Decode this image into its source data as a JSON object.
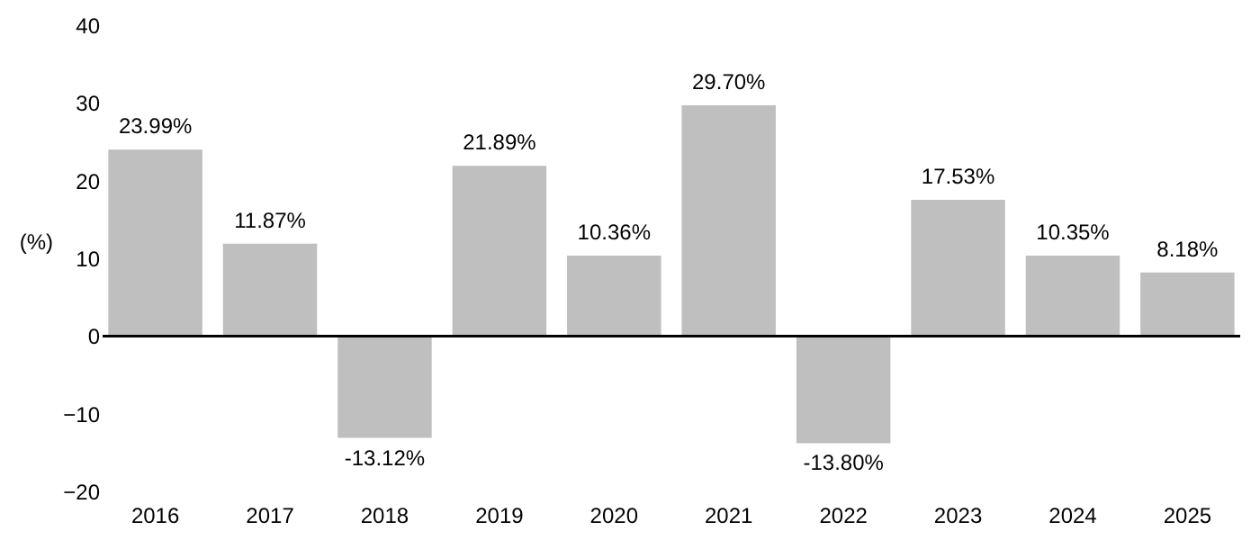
{
  "chart_data": {
    "type": "bar",
    "ylabel": "(%)",
    "categories": [
      "2016",
      "2017",
      "2018",
      "2019",
      "2020",
      "2021",
      "2022",
      "2023",
      "2024",
      "2025"
    ],
    "values": [
      23.99,
      11.87,
      -13.12,
      21.89,
      10.36,
      29.7,
      -13.8,
      17.53,
      10.35,
      8.18
    ],
    "value_labels": [
      "23.99%",
      "11.87%",
      "-13.12%",
      "21.89%",
      "10.36%",
      "29.70%",
      "-13.80%",
      "17.53%",
      "10.35%",
      "8.18%"
    ],
    "color": "#bfbfbf",
    "ylim": [
      -20,
      40
    ],
    "yticks": [
      -20,
      -10,
      0,
      10,
      20,
      30,
      40
    ],
    "ref_lines": [
      {
        "axis": "y",
        "value": 0,
        "color": "#000000"
      }
    ]
  }
}
